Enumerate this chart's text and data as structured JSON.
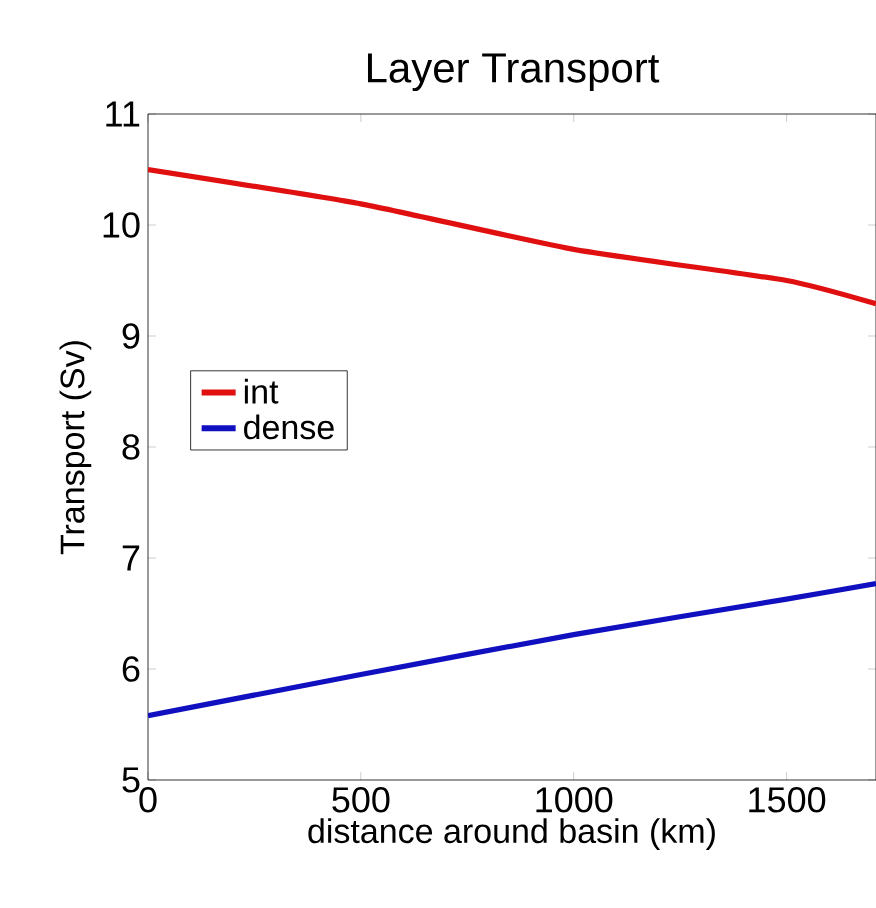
{
  "chart_data": {
    "type": "line",
    "title": "Layer Transport",
    "xlabel": "distance around basin (km)",
    "ylabel": "Transport (Sv)",
    "x": [
      0,
      500,
      1000,
      1500,
      1710
    ],
    "series": [
      {
        "name": "int",
        "color": "#e01010",
        "values": [
          10.5,
          10.19,
          9.78,
          9.5,
          9.29
        ]
      },
      {
        "name": "dense",
        "color": "#1010c0",
        "values": [
          5.58,
          5.95,
          6.31,
          6.63,
          6.77
        ]
      }
    ],
    "xlim": [
      0,
      1710
    ],
    "ylim": [
      5,
      11
    ],
    "xticks": [
      0,
      500,
      1000,
      1500
    ],
    "yticks": [
      5,
      6,
      7,
      8,
      9,
      10,
      11
    ],
    "legend": "left",
    "grid": false,
    "marker": "none",
    "line_style": "solid"
  }
}
